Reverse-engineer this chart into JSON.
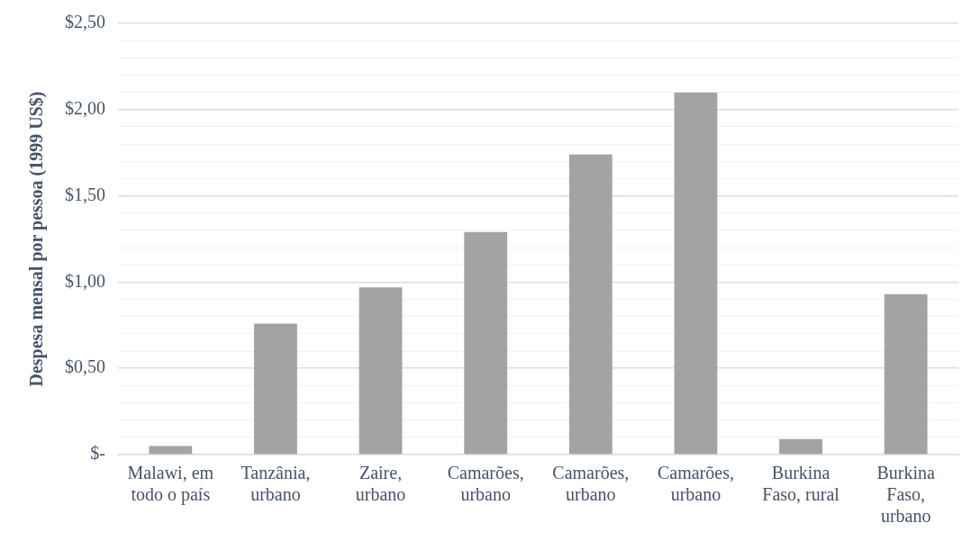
{
  "chart_data": {
    "type": "bar",
    "ylabel": "Despesa mensal por pessoa (1999 US$)",
    "categories": [
      "Malawi, em todo o país",
      "Tanzânia, urbano",
      "Zaire, urbano",
      "Camarões, urbano",
      "Camarões, urbano",
      "Camarões, urbano",
      "Burkina Faso, rural",
      "Burkina Faso, urbano"
    ],
    "values": [
      0.05,
      0.76,
      0.97,
      1.29,
      1.74,
      2.1,
      0.09,
      0.93
    ],
    "color": "#a3a3a3",
    "ylim": [
      0,
      2.5
    ],
    "yticks": [
      {
        "value": 0,
        "label": "$-"
      },
      {
        "value": 0.1,
        "label": null
      },
      {
        "value": 0.2,
        "label": null
      },
      {
        "value": 0.3,
        "label": null
      },
      {
        "value": 0.4,
        "label": null
      },
      {
        "value": 0.5,
        "label": "$0,50"
      },
      {
        "value": 0.6,
        "label": null
      },
      {
        "value": 0.7,
        "label": null
      },
      {
        "value": 0.8,
        "label": null
      },
      {
        "value": 0.9,
        "label": null
      },
      {
        "value": 1,
        "label": "$1,00"
      },
      {
        "value": 1.1,
        "label": null
      },
      {
        "value": 1.2,
        "label": null
      },
      {
        "value": 1.3,
        "label": null
      },
      {
        "value": 1.4,
        "label": null
      },
      {
        "value": 1.5,
        "label": "$1,50"
      },
      {
        "value": 1.6,
        "label": null
      },
      {
        "value": 1.7,
        "label": null
      },
      {
        "value": 1.8,
        "label": null
      },
      {
        "value": 1.9,
        "label": null
      },
      {
        "value": 2,
        "label": "$2,00"
      },
      {
        "value": 2.1,
        "label": null
      },
      {
        "value": 2.2,
        "label": null
      },
      {
        "value": 2.3,
        "label": null
      },
      {
        "value": 2.4,
        "label": null
      },
      {
        "value": 2.5,
        "label": "$2,50"
      }
    ],
    "grid": "y",
    "legend": false
  }
}
